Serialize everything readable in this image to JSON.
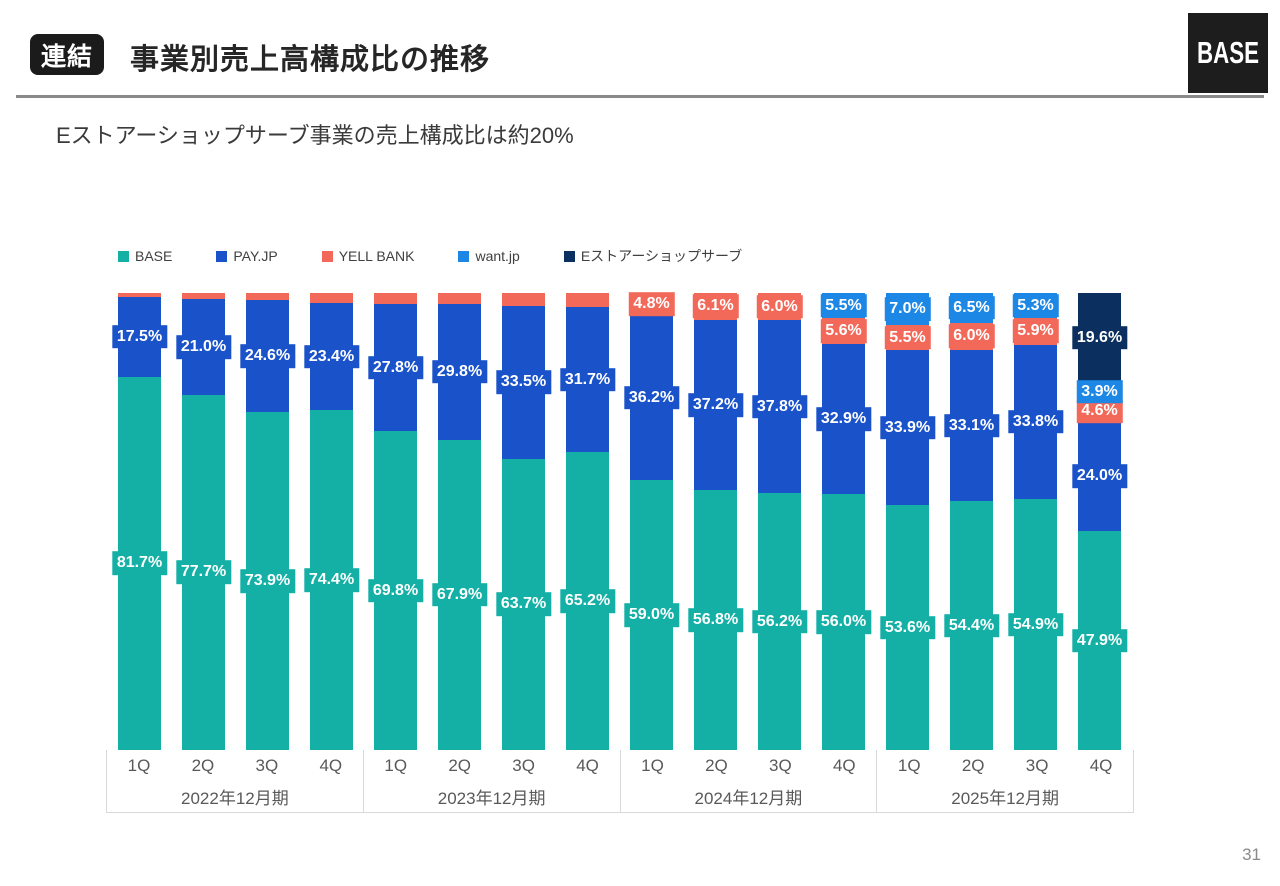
{
  "header": {
    "badge": "連結",
    "title": "事業別売上高構成比の推移",
    "logo": "BASE"
  },
  "subtitle": "Eストアーショップサーブ事業の売上構成比は約20%",
  "page_number": "31",
  "chart_data": {
    "type": "bar",
    "stacked": true,
    "orientation": "vertical",
    "value_unit": "%",
    "ylim": [
      0,
      100
    ],
    "grid": false,
    "legend_position": "top-left",
    "year_groups": [
      "2022年12月期",
      "2023年12月期",
      "2024年12月期",
      "2025年12月期"
    ],
    "quarters": [
      "1Q",
      "2Q",
      "3Q",
      "4Q"
    ],
    "series": [
      {
        "name": "BASE",
        "slug": "base",
        "color": "#14b0a6",
        "values": [
          81.7,
          77.7,
          73.9,
          74.4,
          69.8,
          67.9,
          63.7,
          65.2,
          59.0,
          56.8,
          56.2,
          56.0,
          53.6,
          54.4,
          54.9,
          47.9
        ],
        "labels": [
          "81.7%",
          "77.7%",
          "73.9%",
          "74.4%",
          "69.8%",
          "67.9%",
          "63.7%",
          "65.2%",
          "59.0%",
          "56.8%",
          "56.2%",
          "56.0%",
          "53.6%",
          "54.4%",
          "54.9%",
          "47.9%"
        ]
      },
      {
        "name": "PAY.JP",
        "slug": "pay-jp",
        "color": "#1a52ca",
        "values": [
          17.5,
          21.0,
          24.6,
          23.4,
          27.8,
          29.8,
          33.5,
          31.7,
          36.2,
          37.2,
          37.8,
          32.9,
          33.9,
          33.1,
          33.8,
          24.0
        ],
        "labels": [
          "17.5%",
          "21.0%",
          "24.6%",
          "23.4%",
          "27.8%",
          "29.8%",
          "33.5%",
          "31.7%",
          "36.2%",
          "37.2%",
          "37.8%",
          "32.9%",
          "33.9%",
          "33.1%",
          "33.8%",
          "24.0%"
        ]
      },
      {
        "name": "YELL BANK",
        "slug": "yell-bank",
        "color": "#f2695a",
        "values": [
          0.8,
          1.3,
          1.5,
          2.2,
          2.4,
          2.3,
          2.8,
          3.1,
          4.8,
          6.1,
          6.0,
          5.6,
          5.5,
          6.0,
          5.9,
          4.6
        ],
        "labels": [
          "",
          "",
          "",
          "",
          "",
          "",
          "",
          "",
          "4.8%",
          "6.1%",
          "6.0%",
          "5.6%",
          "5.5%",
          "6.0%",
          "5.9%",
          "4.6%"
        ]
      },
      {
        "name": "want.jp",
        "slug": "want-jp",
        "color": "#1d87e6",
        "values": [
          0,
          0,
          0,
          0,
          0,
          0,
          0,
          0,
          0,
          0,
          0,
          5.5,
          7.0,
          6.5,
          5.3,
          3.9
        ],
        "labels": [
          "",
          "",
          "",
          "",
          "",
          "",
          "",
          "",
          "",
          "",
          "",
          "5.5%",
          "7.0%",
          "6.5%",
          "5.3%",
          "3.9%"
        ]
      },
      {
        "name": "Eストアーショップサーブ",
        "slug": "e-store-shopserve",
        "color": "#0b2f5e",
        "values": [
          0,
          0,
          0,
          0,
          0,
          0,
          0,
          0,
          0,
          0,
          0,
          0,
          0,
          0,
          0,
          19.6
        ],
        "labels": [
          "",
          "",
          "",
          "",
          "",
          "",
          "",
          "",
          "",
          "",
          "",
          "",
          "",
          "",
          "",
          "19.6%"
        ]
      }
    ]
  }
}
